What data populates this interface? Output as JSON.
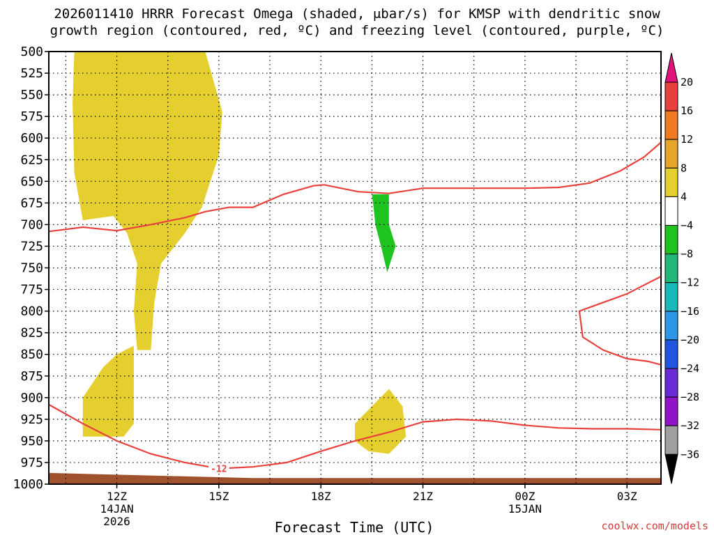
{
  "title": {
    "line1": "2026011410 HRRR Forecast Omega (shaded, μbar/s) for KMSP with dendritic snow",
    "line2": "growth region (contoured, red, ºC) and freezing level (contoured, purple, ºC)"
  },
  "credit": "coolwx.com/models",
  "chart_data": {
    "type": "heatmap",
    "title": "2026011410 HRRR Forecast Omega (shaded, μbar/s) for KMSP with dendritic snow growth region (contoured, red, ºC) and freezing level (contoured, purple, ºC)",
    "xlabel": "Forecast Time (UTC)",
    "ylabel": "",
    "x_range_hours": [
      10,
      28
    ],
    "y_range_hpa": [
      1000,
      500
    ],
    "grid": true,
    "y_ticks": [
      "500",
      "525",
      "550",
      "575",
      "600",
      "625",
      "650",
      "675",
      "700",
      "725",
      "750",
      "775",
      "800",
      "825",
      "850",
      "875",
      "900",
      "925",
      "950",
      "975",
      "1000"
    ],
    "x_ticks": [
      {
        "hour": 12,
        "label": "12Z",
        "sub1": "14JAN",
        "sub2": "2026"
      },
      {
        "hour": 15,
        "label": "15Z",
        "sub1": "",
        "sub2": ""
      },
      {
        "hour": 18,
        "label": "18Z",
        "sub1": "",
        "sub2": ""
      },
      {
        "hour": 21,
        "label": "21Z",
        "sub1": "",
        "sub2": ""
      },
      {
        "hour": 24,
        "label": "00Z",
        "sub1": "15JAN",
        "sub2": ""
      },
      {
        "hour": 27,
        "label": "03Z",
        "sub1": "",
        "sub2": ""
      }
    ],
    "colorbar": {
      "labels": [
        "20",
        "16",
        "12",
        "8",
        "4",
        "-4",
        "-8",
        "-12",
        "-16",
        "-20",
        "-24",
        "-28",
        "-32",
        "-36"
      ],
      "colors": [
        "#e8413c",
        "#ef7a22",
        "#e6a42a",
        "#e5cf2e",
        "#ffffff",
        "#1fc31f",
        "#22b87a",
        "#1ab8b8",
        "#2b97e6",
        "#2255dd",
        "#6a2bd4",
        "#9214c8",
        "#a0a0a0"
      ],
      "top_arrow_color": "#e0137c",
      "bottom_arrow_color": "#000000"
    },
    "shaded_regions": [
      {
        "name": "omega 4-8 upper",
        "color": "#e5cf2e",
        "points": [
          [
            10.75,
            500
          ],
          [
            14.6,
            500
          ],
          [
            15.1,
            570
          ],
          [
            15.0,
            620
          ],
          [
            14.5,
            680
          ],
          [
            14.0,
            710
          ],
          [
            13.3,
            745
          ],
          [
            13.1,
            790
          ],
          [
            13.0,
            845
          ],
          [
            12.6,
            845
          ],
          [
            12.5,
            800
          ],
          [
            12.6,
            745
          ],
          [
            12.3,
            710
          ],
          [
            11.9,
            690
          ],
          [
            11.0,
            695
          ],
          [
            10.75,
            640
          ],
          [
            10.7,
            560
          ]
        ]
      },
      {
        "name": "omega 4-8 lower-left",
        "color": "#e5cf2e",
        "points": [
          [
            11.0,
            900
          ],
          [
            11.6,
            865
          ],
          [
            12.0,
            850
          ],
          [
            12.5,
            840
          ],
          [
            12.5,
            930
          ],
          [
            12.2,
            945
          ],
          [
            11.0,
            945
          ]
        ]
      },
      {
        "name": "omega 4-8 lower-center",
        "color": "#e5cf2e",
        "points": [
          [
            19.0,
            930
          ],
          [
            19.5,
            910
          ],
          [
            20.0,
            890
          ],
          [
            20.4,
            910
          ],
          [
            20.5,
            945
          ],
          [
            20.0,
            965
          ],
          [
            19.4,
            962
          ],
          [
            19.0,
            950
          ]
        ]
      },
      {
        "name": "omega -4 to -8",
        "color": "#1fc31f",
        "points": [
          [
            19.5,
            665
          ],
          [
            20.0,
            665
          ],
          [
            20.0,
            700
          ],
          [
            20.2,
            725
          ],
          [
            19.95,
            755
          ],
          [
            19.8,
            730
          ],
          [
            19.6,
            700
          ],
          [
            19.55,
            680
          ]
        ]
      }
    ],
    "dgz_contours": [
      {
        "label": "",
        "points": [
          [
            10.0,
            708
          ],
          [
            11.0,
            703
          ],
          [
            12.0,
            707
          ],
          [
            13.0,
            700
          ],
          [
            14.0,
            692
          ],
          [
            14.6,
            685
          ],
          [
            15.3,
            680
          ],
          [
            16.0,
            680
          ],
          [
            16.9,
            665
          ],
          [
            17.8,
            655
          ],
          [
            18.1,
            654
          ],
          [
            19.1,
            662
          ],
          [
            20.0,
            664
          ],
          [
            21.0,
            658
          ],
          [
            22.0,
            658
          ],
          [
            23.0,
            658
          ],
          [
            24.0,
            658
          ],
          [
            25.0,
            657
          ],
          [
            25.9,
            652
          ],
          [
            26.8,
            638
          ],
          [
            27.5,
            622
          ],
          [
            28.0,
            605
          ]
        ]
      },
      {
        "label": "",
        "points": [
          [
            28.0,
            760
          ],
          [
            27.5,
            770
          ],
          [
            27.0,
            780
          ],
          [
            26.3,
            790
          ],
          [
            25.6,
            800
          ],
          [
            25.7,
            830
          ],
          [
            26.3,
            845
          ],
          [
            27.0,
            855
          ],
          [
            27.6,
            858
          ],
          [
            28.0,
            862
          ]
        ]
      },
      {
        "label": "-12",
        "points": [
          [
            10.0,
            908
          ],
          [
            11.0,
            930
          ],
          [
            12.0,
            950
          ],
          [
            13.0,
            965
          ],
          [
            14.0,
            975
          ],
          [
            15.0,
            982
          ],
          [
            16.0,
            980
          ],
          [
            17.0,
            975
          ],
          [
            18.0,
            962
          ],
          [
            19.0,
            950
          ],
          [
            20.0,
            940
          ],
          [
            21.0,
            928
          ],
          [
            22.0,
            925
          ],
          [
            23.0,
            927
          ],
          [
            24.0,
            932
          ],
          [
            25.0,
            935
          ],
          [
            26.0,
            936
          ],
          [
            27.0,
            936
          ],
          [
            28.0,
            937
          ]
        ]
      }
    ],
    "terrain": {
      "name": "surface ground",
      "color": "#a0522d",
      "points": [
        [
          10.0,
          987
        ],
        [
          16.0,
          993
        ],
        [
          28.0,
          993
        ],
        [
          28.0,
          1000
        ],
        [
          10.0,
          1000
        ]
      ]
    }
  }
}
